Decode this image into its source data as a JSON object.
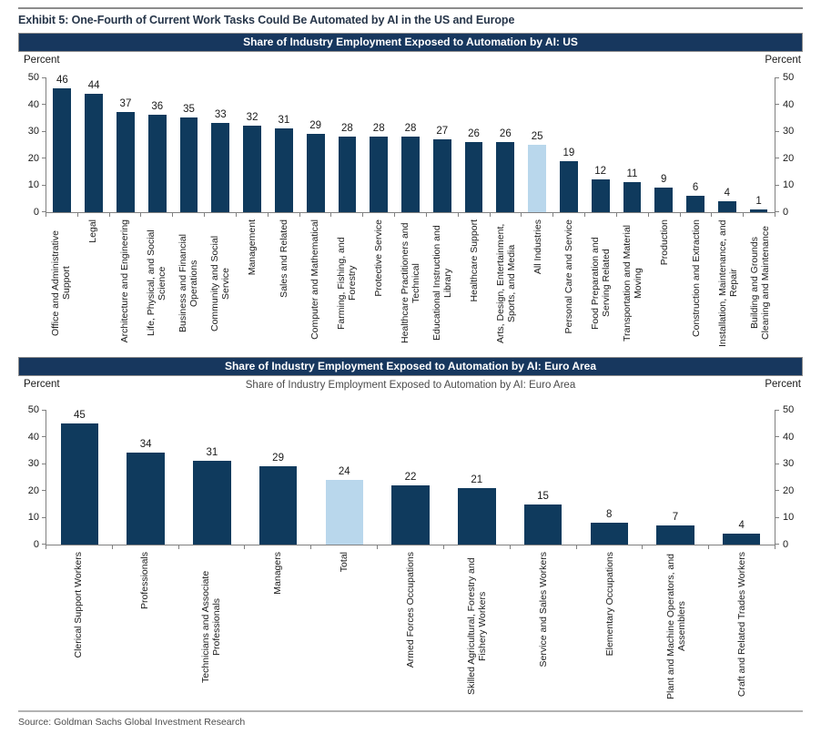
{
  "page": {
    "exhibit_title": "Exhibit 5: One-Fourth of Current Work Tasks Could Be Automated by AI in the US and Europe",
    "source": "Source: Goldman Sachs Global Investment Research",
    "colors": {
      "header_bar_bg": "#17375e",
      "header_bar_text": "#ffffff",
      "bar_navy": "#0f3a5d",
      "bar_highlight_blue": "#b9d7ec",
      "axis_gray": "#808080"
    }
  },
  "chart_data": [
    {
      "type": "bar",
      "header": "Share of Industry Employment Exposed to Automation by AI: US",
      "axis_label_left": "Percent",
      "axis_label_right": "Percent",
      "ylim": [
        0,
        50
      ],
      "yticks": [
        0,
        10,
        20,
        30,
        40,
        50
      ],
      "grid": false,
      "bar_color": "#0f3a5d",
      "highlight_color": "#b9d7ec",
      "highlight_index": 15,
      "categories": [
        "Office and Administrative Support",
        "Legal",
        "Architecture and Engineering",
        "Life, Physical, and Social Science",
        "Business and Financial Operations",
        "Community and Social Service",
        "Management",
        "Sales and Related",
        "Computer and Mathematical",
        "Farming, Fishing, and Forestry",
        "Protective Service",
        "Healthcare Practitioners and Technical",
        "Educational Instruction and Library",
        "Healthcare Support",
        "Arts, Design, Entertainment, Sports, and Media",
        "All Industries",
        "Personal Care and Service",
        "Food Preparation and Serving Related",
        "Transportation and Material Moving",
        "Production",
        "Construction and Extraction",
        "Installation, Maintenance, and Repair",
        "Building and Grounds Cleaning and Maintenance"
      ],
      "values": [
        46,
        44,
        37,
        36,
        35,
        33,
        32,
        31,
        29,
        28,
        28,
        28,
        27,
        26,
        26,
        25,
        19,
        12,
        11,
        9,
        6,
        4,
        1
      ]
    },
    {
      "type": "bar",
      "header": "Share of Industry Employment Exposed to Automation by AI: Euro Area",
      "subtitle": "Share of Industry Employment Exposed to Automation by AI: Euro Area",
      "axis_label_left": "Percent",
      "axis_label_right": "Percent",
      "ylim": [
        0,
        50
      ],
      "yticks": [
        0,
        10,
        20,
        30,
        40,
        50
      ],
      "grid": false,
      "bar_color": "#0f3a5d",
      "highlight_color": "#b9d7ec",
      "highlight_index": 4,
      "categories": [
        "Clerical Support Workers",
        "Professionals",
        "Technicians and Associate Professionals",
        "Managers",
        "Total",
        "Armed Forces Occupations",
        "Skilled Agricultural, Forestry and Fishery Workers",
        "Service and Sales Workers",
        "Elementary Occupations",
        "Plant and Machine Operators, and Assemblers",
        "Craft and Related Trades Workers"
      ],
      "values": [
        45,
        34,
        31,
        29,
        24,
        22,
        21,
        15,
        8,
        7,
        4
      ]
    }
  ]
}
